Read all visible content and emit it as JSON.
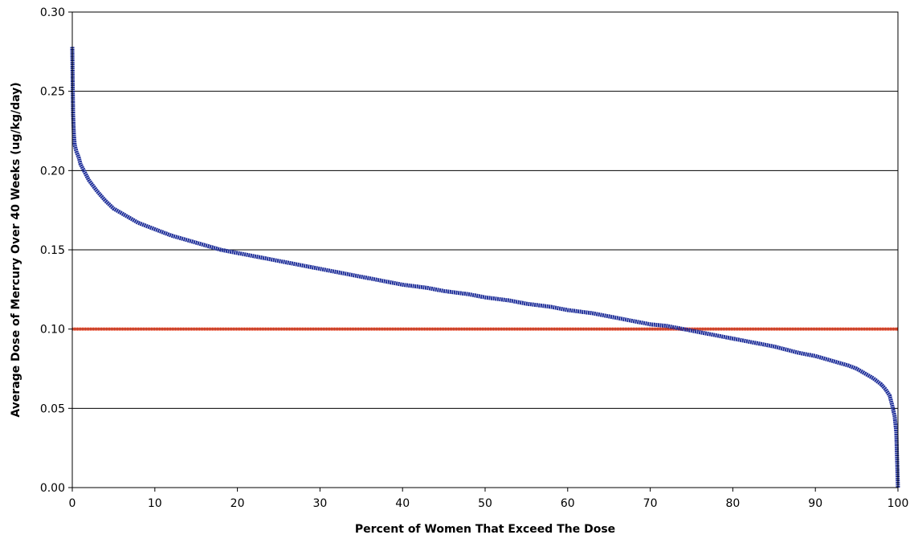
{
  "chart_data": {
    "type": "line",
    "title": "",
    "xlabel": "Percent of Women That Exceed The Dose",
    "ylabel": "Average Dose of Mercury Over 40 Weeks (ug/kg/day)",
    "xlim": [
      0,
      100
    ],
    "ylim": [
      0,
      0.3
    ],
    "x_ticks": [
      "0",
      "10",
      "20",
      "30",
      "40",
      "50",
      "60",
      "70",
      "80",
      "90",
      "100"
    ],
    "y_ticks": [
      "0.00",
      "0.05",
      "0.10",
      "0.15",
      "0.20",
      "0.25",
      "0.30"
    ],
    "grid": "horizontal",
    "legend": "none",
    "series": [
      {
        "color": "#1f2f9a",
        "x": [
          0,
          0.05,
          0.1,
          0.2,
          0.3,
          0.5,
          0.8,
          1,
          1.5,
          2,
          3,
          4,
          5,
          6,
          7,
          8,
          10,
          12,
          14,
          16,
          18,
          20,
          22,
          25,
          28,
          30,
          33,
          35,
          38,
          40,
          43,
          45,
          48,
          50,
          53,
          55,
          58,
          60,
          63,
          65,
          68,
          70,
          72,
          74,
          76,
          78,
          80,
          82,
          85,
          88,
          90,
          92,
          94,
          95,
          96,
          97,
          98,
          98.5,
          99,
          99.3,
          99.6,
          99.8,
          100
        ],
        "values": [
          0.278,
          0.255,
          0.235,
          0.222,
          0.216,
          0.212,
          0.208,
          0.204,
          0.199,
          0.194,
          0.187,
          0.181,
          0.176,
          0.173,
          0.17,
          0.167,
          0.163,
          0.159,
          0.156,
          0.153,
          0.15,
          0.148,
          0.146,
          0.143,
          0.14,
          0.138,
          0.135,
          0.133,
          0.13,
          0.128,
          0.126,
          0.124,
          0.122,
          0.12,
          0.118,
          0.116,
          0.114,
          0.112,
          0.11,
          0.108,
          0.105,
          0.103,
          0.102,
          0.1,
          0.098,
          0.096,
          0.094,
          0.092,
          0.089,
          0.085,
          0.083,
          0.08,
          0.077,
          0.075,
          0.072,
          0.069,
          0.065,
          0.062,
          0.058,
          0.052,
          0.045,
          0.035,
          0.0
        ]
      },
      {
        "color": "#e03010",
        "x": [
          0,
          100
        ],
        "values": [
          0.1,
          0.1
        ]
      }
    ]
  }
}
